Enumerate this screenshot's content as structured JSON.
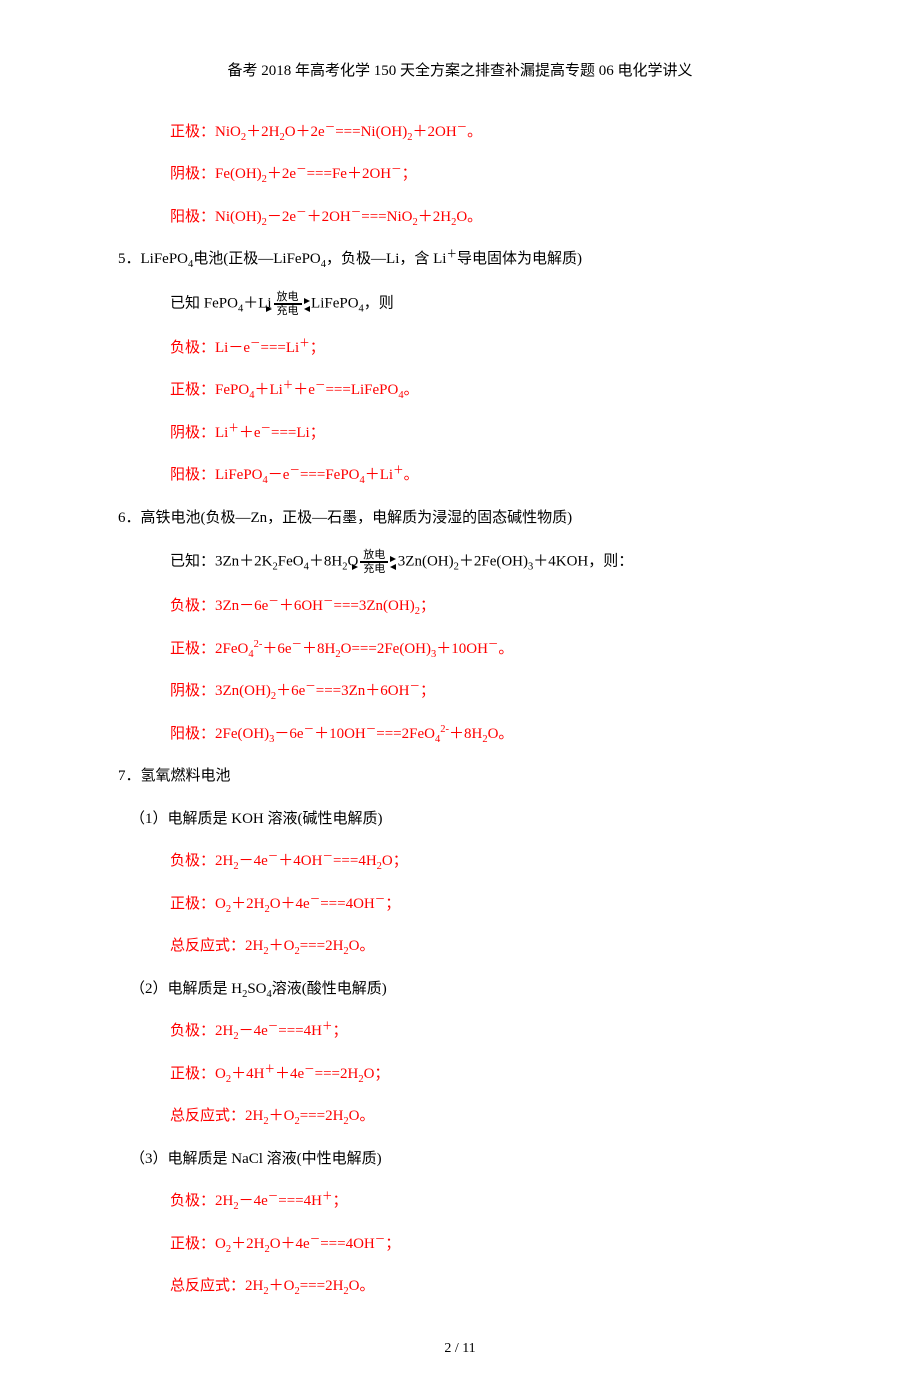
{
  "colors": {
    "text_black": "#000000",
    "text_red": "#ff0000",
    "background": "#ffffff"
  },
  "typography": {
    "body_fontsize_pt": 11,
    "header_fontsize_pt": 11,
    "font_family": "SimSun"
  },
  "header": "备考 2018 年高考化学 150 天全方案之排查补漏提高专题 06 电化学讲义",
  "footer": "2 / 11",
  "eq": {
    "l1": "正极：NiO₂＋2H₂O＋2e⁻===Ni(OH)₂＋2OH⁻。",
    "l2": "阴极：Fe(OH)₂＋2e⁻===Fe＋2OH⁻；",
    "l3": "阳极：Ni(OH)₂－2e⁻＋2OH⁻===NiO₂＋2H₂O。",
    "s5_title": "5．LiFePO₄电池(正极—LiFePO₄，负极—Li，含 Li⁺导电固体为电解质)",
    "s5_given_a": "已知 FePO₄＋Li",
    "s5_given_top": "放电",
    "s5_given_bot": "充电",
    "s5_given_b": "LiFePO₄，则",
    "l5_1": "负极：Li－e⁻===Li⁺；",
    "l5_2": "正极：FePO₄＋Li⁺＋e⁻===LiFePO₄。",
    "l5_3": "阴极：Li⁺＋e⁻===Li；",
    "l5_4": "阳极：LiFePO₄－e⁻===FePO₄＋Li⁺。",
    "s6_title": "6．高铁电池(负极—Zn，正极—石墨，电解质为浸湿的固态碱性物质)",
    "s6_given_a": "已知：3Zn＋2K₂FeO₄＋8H₂O",
    "s6_given_top": "放电",
    "s6_given_bot": "充电",
    "s6_given_b": "3Zn(OH)₂＋2Fe(OH)₃＋4KOH，则：",
    "l6_1": "负极：3Zn－6e⁻＋6OH⁻===3Zn(OH)₂；",
    "l6_2": "正极：2FeO₄²⁻＋6e⁻＋8H₂O===2Fe(OH)₃＋10OH⁻。",
    "l6_3": "阴极：3Zn(OH)₂＋6e⁻===3Zn＋6OH⁻；",
    "l6_4": "阳极：2Fe(OH)₃－6e⁻＋10OH⁻===2FeO₄²⁻＋8H₂O。",
    "s7_title": "7．氢氧燃料电池",
    "s7_1": "（1）电解质是 KOH 溶液(碱性电解质)",
    "l7_1_1": "负极：2H₂－4e⁻＋4OH⁻===4H₂O；",
    "l7_1_2": "正极：O₂＋2H₂O＋4e⁻===4OH⁻；",
    "l7_1_3": "总反应式：2H₂＋O₂===2H₂O。",
    "s7_2": "（2）电解质是 H₂SO₄溶液(酸性电解质)",
    "l7_2_1": "负极：2H₂－4e⁻===4H⁺；",
    "l7_2_2": "正极：O₂＋4H⁺＋4e⁻===2H₂O；",
    "l7_2_3": "总反应式：2H₂＋O₂===2H₂O。",
    "s7_3": "（3）电解质是 NaCl 溶液(中性电解质)",
    "l7_3_1": "负极：2H₂－4e⁻===4H⁺；",
    "l7_3_2": "正极：O₂＋2H₂O＋4e⁻===4OH⁻；",
    "l7_3_3": "总反应式：2H₂＋O₂===2H₂O。"
  }
}
